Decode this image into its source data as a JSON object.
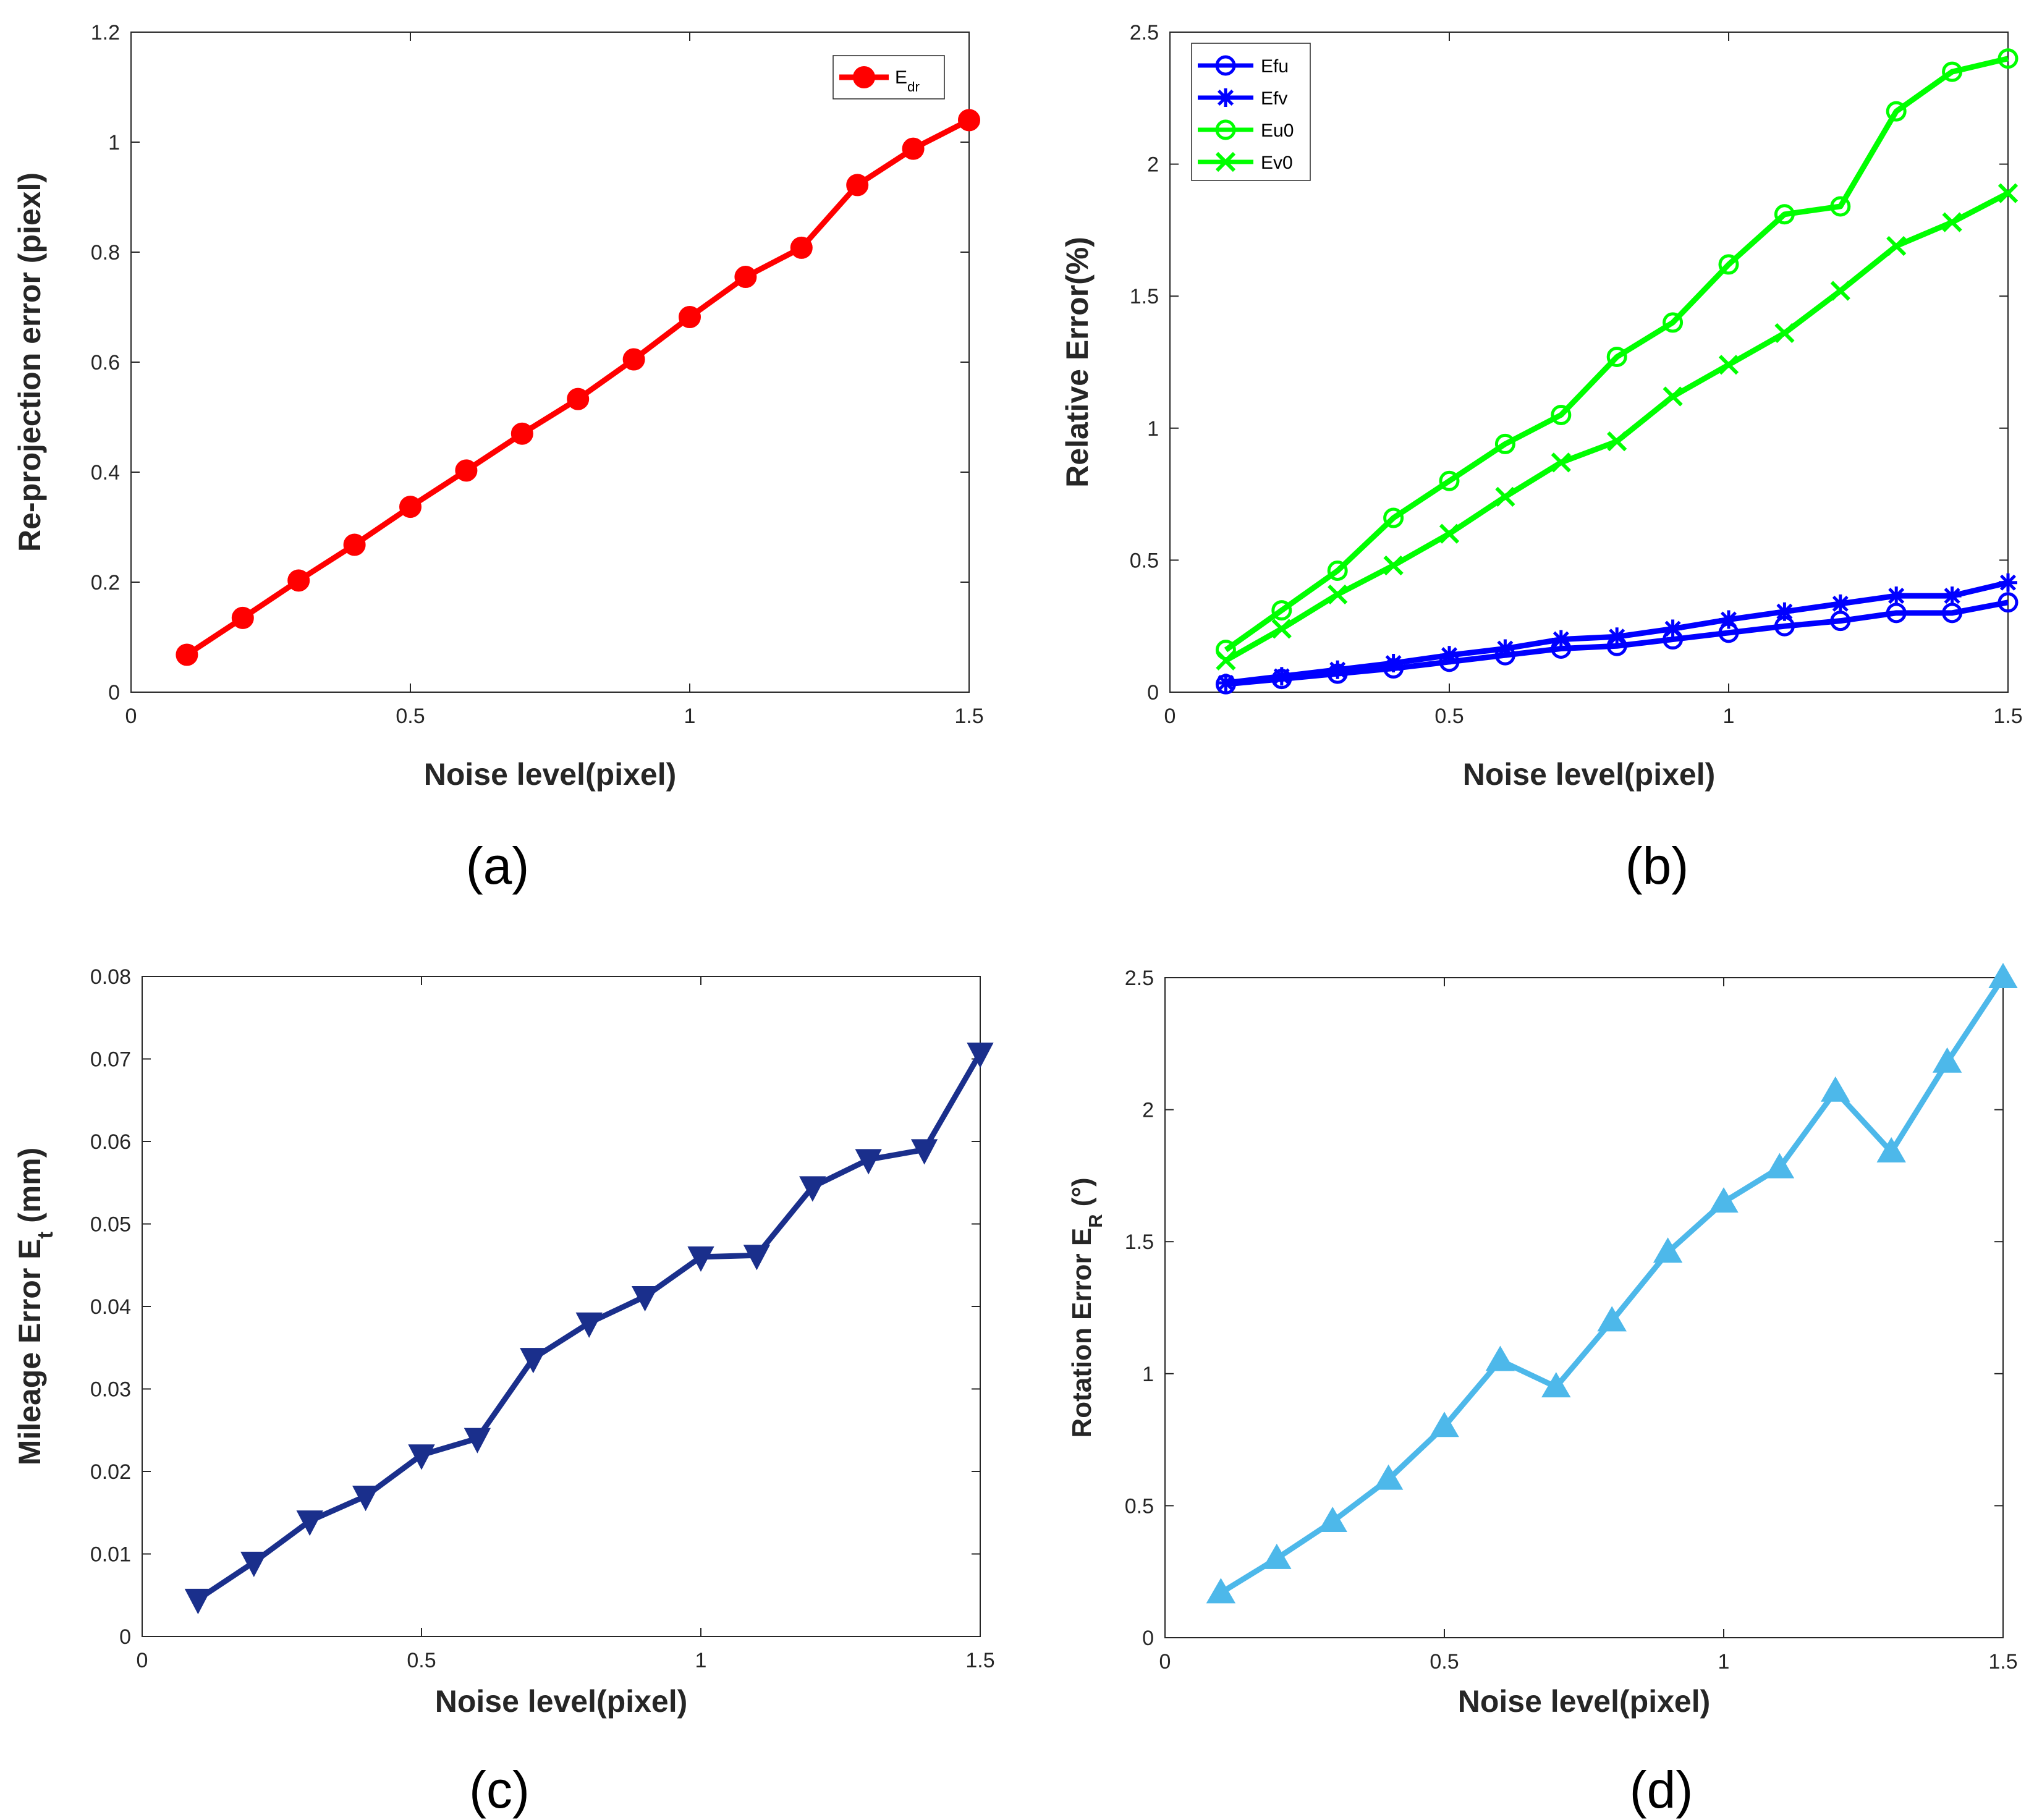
{
  "chart_data": [
    {
      "id": "a",
      "type": "line",
      "caption": "(a)",
      "xlabel": "Noise level(pixel)",
      "ylabel": "Re-projection  error (piexl)",
      "xlim": [
        0,
        1.5
      ],
      "ylim": [
        0,
        1.2
      ],
      "xticks": [
        "0",
        "0.5",
        "1",
        "1.5"
      ],
      "xtick_values": [
        0,
        0.5,
        1,
        1.5
      ],
      "yticks": [
        "0",
        "0.2",
        "0.4",
        "0.6",
        "0.8",
        "1",
        "1.2"
      ],
      "ytick_values": [
        0,
        0.2,
        0.4,
        0.6,
        0.8,
        1,
        1.2
      ],
      "legend_position": "top-right",
      "x": [
        0.1,
        0.2,
        0.3,
        0.4,
        0.5,
        0.6,
        0.7,
        0.8,
        0.9,
        1.0,
        1.1,
        1.2,
        1.3,
        1.4,
        1.5
      ],
      "series": [
        {
          "name": "E",
          "name_sub": "dr",
          "color": "#ff0000",
          "marker": "filled-circle",
          "values": [
            0.068,
            0.135,
            0.203,
            0.268,
            0.337,
            0.403,
            0.47,
            0.533,
            0.605,
            0.682,
            0.755,
            0.808,
            0.922,
            0.988,
            1.04
          ]
        }
      ]
    },
    {
      "id": "b",
      "type": "line",
      "caption": "(b)",
      "xlabel": "Noise level(pixel)",
      "ylabel": "Relative Error(%)",
      "xlim": [
        0,
        1.5
      ],
      "ylim": [
        0,
        2.5
      ],
      "xticks": [
        "0",
        "0.5",
        "1",
        "1.5"
      ],
      "xtick_values": [
        0,
        0.5,
        1,
        1.5
      ],
      "yticks": [
        "0",
        "0.5",
        "1",
        "1.5",
        "2",
        "2.5"
      ],
      "ytick_values": [
        0,
        0.5,
        1,
        1.5,
        2,
        2.5
      ],
      "legend_position": "top-left",
      "x": [
        0.1,
        0.2,
        0.3,
        0.4,
        0.5,
        0.6,
        0.7,
        0.8,
        0.9,
        1.0,
        1.1,
        1.2,
        1.3,
        1.4,
        1.5
      ],
      "series": [
        {
          "name": "Efu",
          "color": "#0000ff",
          "marker": "open-circle",
          "values": [
            0.03,
            0.05,
            0.07,
            0.09,
            0.115,
            0.14,
            0.165,
            0.175,
            0.2,
            0.225,
            0.25,
            0.27,
            0.3,
            0.3,
            0.34
          ]
        },
        {
          "name": "Efv",
          "color": "#0000ff",
          "marker": "asterisk",
          "values": [
            0.035,
            0.06,
            0.085,
            0.11,
            0.14,
            0.165,
            0.2,
            0.21,
            0.24,
            0.275,
            0.305,
            0.335,
            0.365,
            0.365,
            0.415
          ]
        },
        {
          "name": "Eu0",
          "color": "#00ff00",
          "marker": "open-circle",
          "values": [
            0.16,
            0.31,
            0.46,
            0.66,
            0.8,
            0.94,
            1.05,
            1.27,
            1.4,
            1.62,
            1.81,
            1.84,
            2.2,
            2.35,
            2.4
          ]
        },
        {
          "name": "Ev0",
          "color": "#00ff00",
          "marker": "x",
          "values": [
            0.12,
            0.24,
            0.37,
            0.48,
            0.6,
            0.74,
            0.87,
            0.95,
            1.12,
            1.24,
            1.36,
            1.52,
            1.69,
            1.78,
            1.89
          ]
        }
      ]
    },
    {
      "id": "c",
      "type": "line",
      "caption": "(c)",
      "xlabel": "Noise level(pixel)",
      "ylabel": "Mileage Error E",
      "ylabel_sub": "t",
      "ylabel_suffix": "  (mm)",
      "xlim": [
        0,
        1.5
      ],
      "ylim": [
        0,
        0.08
      ],
      "xticks": [
        "0",
        "0.5",
        "1",
        "1.5"
      ],
      "xtick_values": [
        0,
        0.5,
        1,
        1.5
      ],
      "yticks": [
        "0",
        "0.01",
        "0.02",
        "0.03",
        "0.04",
        "0.05",
        "0.06",
        "0.07",
        "0.08"
      ],
      "ytick_values": [
        0,
        0.01,
        0.02,
        0.03,
        0.04,
        0.05,
        0.06,
        0.07,
        0.08
      ],
      "x": [
        0.1,
        0.2,
        0.3,
        0.4,
        0.5,
        0.6,
        0.7,
        0.8,
        0.9,
        1.0,
        1.1,
        1.2,
        1.3,
        1.4,
        1.5
      ],
      "series": [
        {
          "name": "Mileage Error",
          "color": "#1a2f8c",
          "marker": "triangle-down",
          "values": [
            0.0045,
            0.009,
            0.014,
            0.017,
            0.022,
            0.024,
            0.0337,
            0.038,
            0.0412,
            0.046,
            0.0462,
            0.0545,
            0.0578,
            0.059,
            0.0707
          ]
        }
      ]
    },
    {
      "id": "d",
      "type": "line",
      "caption": "(d)",
      "xlabel": "Noise level(pixel)",
      "ylabel": "Rotation Error E",
      "ylabel_sub": "R",
      "ylabel_suffix": " (°)",
      "xlim": [
        0,
        1.5
      ],
      "ylim": [
        0,
        2.5
      ],
      "xticks": [
        "0",
        "0.5",
        "1",
        "1.5"
      ],
      "xtick_values": [
        0,
        0.5,
        1,
        1.5
      ],
      "yticks": [
        "0",
        "0.5",
        "1",
        "1.5",
        "2",
        "2.5"
      ],
      "ytick_values": [
        0,
        0.5,
        1,
        1.5,
        2,
        2.5
      ],
      "x": [
        0.1,
        0.2,
        0.3,
        0.4,
        0.5,
        0.6,
        0.7,
        0.8,
        0.9,
        1.0,
        1.1,
        1.2,
        1.3,
        1.4,
        1.5
      ],
      "series": [
        {
          "name": "Rotation Error",
          "color": "#4db8ea",
          "marker": "triangle-up",
          "values": [
            0.17,
            0.3,
            0.44,
            0.6,
            0.8,
            1.05,
            0.95,
            1.2,
            1.46,
            1.65,
            1.78,
            2.07,
            1.84,
            2.18,
            2.5
          ]
        }
      ]
    }
  ]
}
